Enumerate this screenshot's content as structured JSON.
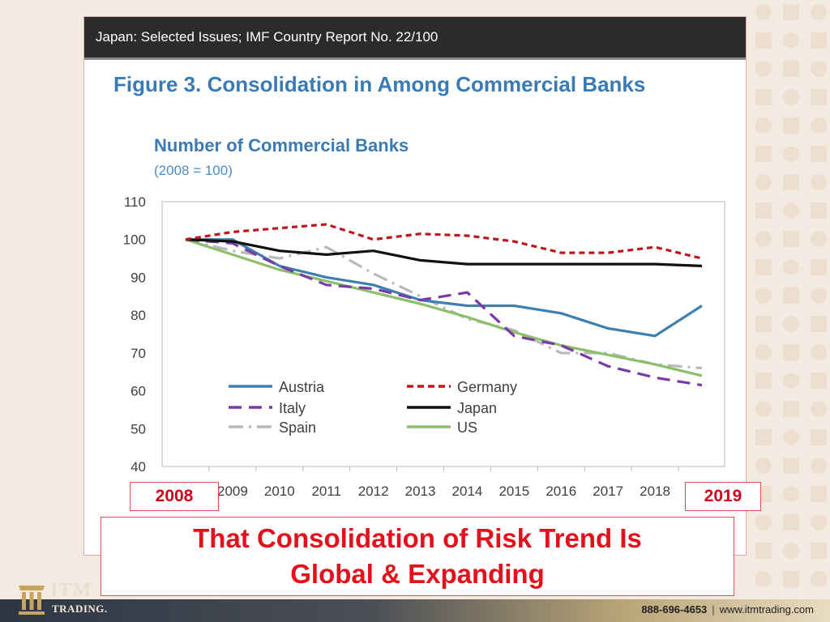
{
  "header": {
    "report": "Japan: Selected Issues; IMF Country Report No. 22/100"
  },
  "figure": {
    "title": "Figure 3. Consolidation in Among Commercial Banks"
  },
  "chart_data": {
    "type": "line",
    "title": "Number of Commercial Banks",
    "subtitle": "(2008 = 100)",
    "x": [
      2008,
      2009,
      2010,
      2011,
      2012,
      2013,
      2014,
      2015,
      2016,
      2017,
      2018,
      2019
    ],
    "x_tick_labels": [
      "2009",
      "2010",
      "2011",
      "2012",
      "2013",
      "2014",
      "2015",
      "2016",
      "2017",
      "2018"
    ],
    "y_ticks": [
      40,
      50,
      60,
      70,
      80,
      90,
      100,
      110
    ],
    "ylim": [
      40,
      110
    ],
    "grid": false,
    "legend": "bottom-left, two columns",
    "series": [
      {
        "name": "Austria",
        "color": "#3f7fb0",
        "dash": "solid",
        "values": [
          100,
          100,
          93,
          90,
          88,
          84,
          82.5,
          82.5,
          80.5,
          76.5,
          74.5,
          82.5
        ]
      },
      {
        "name": "Germany",
        "color": "#c0151d",
        "dash": "dash",
        "values": [
          100,
          102,
          103,
          104,
          100,
          101.5,
          101,
          99.5,
          96.5,
          96.5,
          98,
          95
        ]
      },
      {
        "name": "Italy",
        "color": "#7a3aa8",
        "dash": "longdash",
        "values": [
          100,
          99,
          93,
          88,
          87,
          84,
          86,
          74.5,
          72,
          66.5,
          63.5,
          61.5
        ]
      },
      {
        "name": "Japan",
        "color": "#111111",
        "dash": "solid",
        "values": [
          100,
          99.5,
          97,
          96,
          97,
          94.5,
          93.5,
          93.5,
          93.5,
          93.5,
          93.5,
          93
        ]
      },
      {
        "name": "Spain",
        "color": "#b9b9b9",
        "dash": "dashdot",
        "values": [
          100,
          97,
          95,
          98,
          91,
          85,
          79,
          76,
          70,
          70,
          67,
          66
        ]
      },
      {
        "name": "US",
        "color": "#8cbf6a",
        "dash": "solid",
        "values": [
          100,
          96,
          92,
          89,
          86,
          83,
          79.5,
          75.5,
          72,
          69.5,
          67,
          64
        ]
      }
    ]
  },
  "badges": {
    "start": "2008",
    "end": "2019"
  },
  "callout": {
    "line1": "That Consolidation of Risk Trend Is",
    "line2": "Global & Expanding"
  },
  "brand": {
    "name": "ITM",
    "sub": "TRADING.",
    "phone": "888-696-4653",
    "separator": "|",
    "website": "www.itmtrading.com"
  },
  "colors": {
    "accent_red": "#e4111c",
    "figure_blue": "#3a7bb5"
  }
}
